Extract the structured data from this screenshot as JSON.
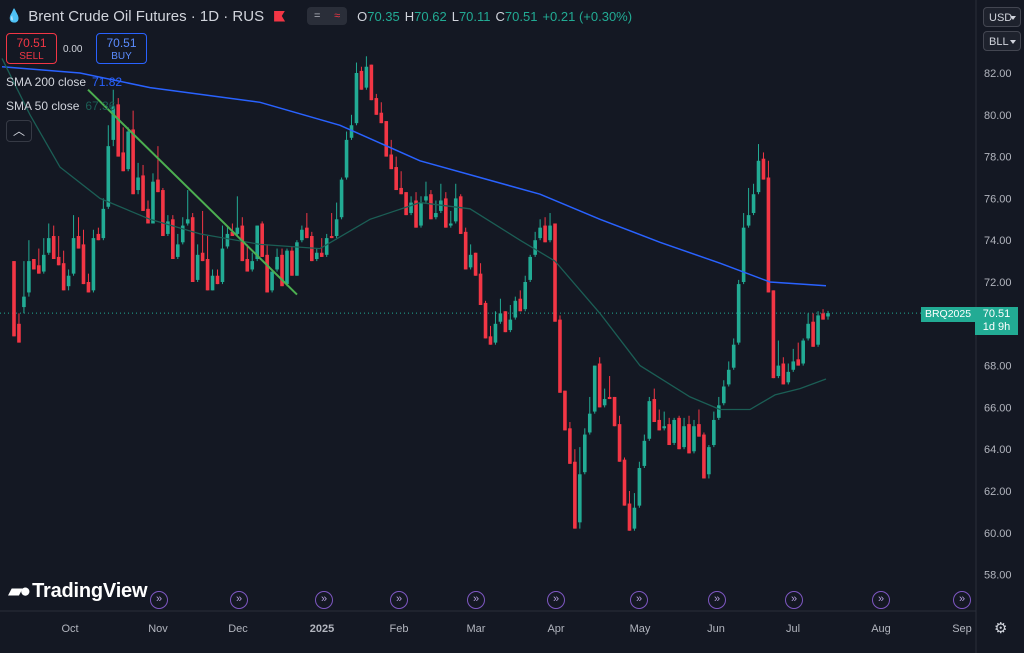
{
  "header": {
    "title": "Brent Crude Oil Futures · 1D · RUS",
    "pill_a": "=",
    "pill_b": "≈",
    "open_label": "O",
    "open": "70.35",
    "high_label": "H",
    "high": "70.62",
    "low_label": "L",
    "low": "70.11",
    "close_label": "C",
    "close": "70.51",
    "change": "+0.21 (+0.30%)"
  },
  "trade": {
    "sell_price": "70.51",
    "sell_label": "SELL",
    "spread": "0.00",
    "buy_price": "70.51",
    "buy_label": "BUY"
  },
  "indicators": [
    {
      "label": "SMA 200 close",
      "value": "71.82",
      "color": "#2962ff"
    },
    {
      "label": "SMA 50 close",
      "value": "67.36",
      "color": "#1b5e55"
    }
  ],
  "collapse_icon": "chevron-up-icon",
  "currency": "USD",
  "unit": "BLL",
  "brand": "TradingView",
  "price_badge": {
    "symbol": "BRQ2025",
    "price": "70.51",
    "countdown": "1d 9h"
  },
  "colors": {
    "up": "#22ab94",
    "down": "#f23645",
    "sma200": "#2962ff",
    "sma50": "#1b5e55",
    "trendline": "#4caf50",
    "background": "#141823",
    "event": "#7e57c2"
  },
  "chart_data": {
    "type": "candlestick",
    "title": "Brent Crude Oil Futures · 1D · RUS",
    "xlabel": "",
    "ylabel": "",
    "ylim": [
      57,
      84
    ],
    "y_ticks": [
      "82.00",
      "80.00",
      "78.00",
      "76.00",
      "74.00",
      "72.00",
      "70.00",
      "68.00",
      "66.00",
      "64.00",
      "62.00",
      "60.00",
      "58.00"
    ],
    "x_ticks": [
      "Oct",
      "Nov",
      "Dec",
      "2025",
      "Feb",
      "Mar",
      "Apr",
      "May",
      "Jun",
      "Jul",
      "Aug",
      "Sep"
    ],
    "grid": false,
    "last_price": 70.51,
    "candles": [
      [
        73,
        72.5,
        70.4,
        69.4
      ],
      [
        70,
        70,
        70.5,
        69.1
      ],
      [
        70.8,
        70.5,
        73.0,
        71.3
      ],
      [
        71.5,
        71.3,
        74.0,
        73.0
      ],
      [
        73.1,
        73.0,
        73.0,
        72.6
      ],
      [
        72.8,
        72.6,
        73.6,
        72.4
      ],
      [
        72.5,
        72.4,
        74.1,
        73.3
      ],
      [
        73.4,
        73.3,
        74.8,
        74.1
      ],
      [
        74.2,
        74.1,
        74.7,
        73.1
      ],
      [
        73.2,
        73.1,
        74.2,
        72.8
      ],
      [
        72.9,
        72.8,
        73.5,
        71.6
      ],
      [
        71.8,
        71.6,
        72.6,
        72.3
      ],
      [
        72.4,
        72.3,
        75.2,
        74.1
      ],
      [
        74.2,
        74.1,
        75.1,
        73.6
      ],
      [
        73.8,
        73.6,
        74.5,
        71.9
      ],
      [
        72.0,
        71.9,
        72.4,
        71.5
      ],
      [
        71.6,
        71.5,
        74.5,
        74.1
      ],
      [
        74.3,
        74.1,
        74.6,
        74.0
      ],
      [
        74.1,
        74.0,
        76.0,
        75.5
      ],
      [
        75.6,
        75.5,
        79.5,
        78.5
      ],
      [
        78.8,
        78.5,
        81.2,
        80.4
      ],
      [
        80.5,
        80.4,
        80.8,
        78.0
      ],
      [
        78.2,
        78.0,
        79.4,
        77.3
      ],
      [
        77.4,
        77.3,
        79.4,
        79.2
      ],
      [
        79.3,
        79.2,
        80.2,
        76.2
      ],
      [
        76.4,
        76.2,
        77.7,
        77.0
      ],
      [
        77.1,
        77.0,
        77.6,
        75.4
      ],
      [
        75.5,
        75.4,
        75.9,
        74.8
      ],
      [
        74.8,
        74.8,
        77.2,
        76.8
      ],
      [
        76.9,
        76.8,
        78.5,
        76.3
      ],
      [
        76.4,
        76.3,
        76.5,
        74.2
      ],
      [
        74.3,
        74.2,
        75.2,
        74.9
      ],
      [
        75.0,
        74.9,
        75.2,
        73.1
      ],
      [
        73.2,
        73.1,
        74.3,
        73.8
      ],
      [
        73.9,
        73.8,
        75.1,
        74.7
      ],
      [
        74.8,
        74.7,
        76.4,
        75.0
      ],
      [
        75.1,
        75.0,
        75.3,
        72.0
      ],
      [
        72.1,
        72.0,
        73.8,
        73.3
      ],
      [
        73.4,
        73.3,
        75.4,
        73.0
      ],
      [
        73.1,
        73.0,
        74.2,
        71.6
      ],
      [
        71.6,
        71.6,
        72.6,
        72.3
      ],
      [
        72.3,
        72.3,
        72.6,
        71.9
      ],
      [
        72.0,
        71.9,
        74.7,
        73.6
      ],
      [
        73.7,
        73.6,
        74.7,
        74.3
      ],
      [
        74.4,
        74.3,
        74.8,
        74.2
      ],
      [
        74.3,
        74.2,
        76.1,
        74.6
      ],
      [
        74.7,
        74.6,
        75.1,
        73.0
      ],
      [
        73.1,
        73.0,
        73.8,
        72.5
      ],
      [
        72.6,
        72.5,
        73.4,
        73.0
      ],
      [
        73.1,
        73.0,
        74.7,
        74.7
      ],
      [
        74.8,
        74.7,
        74.9,
        73.2
      ],
      [
        73.3,
        73.2,
        73.8,
        71.5
      ],
      [
        71.6,
        71.5,
        72.5,
        72.5
      ],
      [
        72.6,
        72.5,
        73.6,
        73.2
      ],
      [
        73.3,
        73.2,
        73.6,
        71.8
      ],
      [
        71.9,
        71.8,
        73.6,
        73.5
      ],
      [
        73.5,
        73.5,
        73.7,
        72.3
      ],
      [
        72.3,
        72.3,
        74.0,
        73.9
      ],
      [
        74.0,
        73.9,
        74.7,
        74.5
      ],
      [
        74.6,
        74.5,
        75.3,
        74.1
      ],
      [
        74.2,
        74.1,
        74.4,
        73.0
      ],
      [
        73.1,
        73.0,
        73.6,
        73.4
      ],
      [
        73.4,
        73.4,
        74.1,
        73.2
      ],
      [
        73.3,
        73.2,
        74.3,
        74.1
      ],
      [
        74.2,
        74.1,
        75.3,
        74.1
      ],
      [
        74.2,
        74.1,
        75.8,
        75.0
      ],
      [
        75.1,
        75.0,
        77.0,
        76.9
      ],
      [
        77.0,
        76.9,
        79.2,
        78.8
      ],
      [
        78.9,
        78.8,
        80.0,
        79.5
      ],
      [
        79.6,
        79.5,
        82.5,
        82.0
      ],
      [
        82.1,
        82.0,
        82.3,
        81.2
      ],
      [
        81.3,
        81.2,
        82.8,
        82.3
      ],
      [
        82.4,
        82.3,
        82.3,
        80.7
      ],
      [
        80.8,
        80.7,
        81.0,
        80.0
      ],
      [
        80.1,
        80.0,
        80.6,
        79.6
      ],
      [
        79.7,
        79.6,
        79.6,
        78.0
      ],
      [
        78.1,
        78.0,
        78.8,
        77.4
      ],
      [
        77.5,
        77.4,
        78.0,
        76.4
      ],
      [
        76.5,
        76.4,
        77.3,
        76.2
      ],
      [
        76.3,
        76.2,
        76.3,
        75.2
      ],
      [
        75.3,
        75.2,
        76.1,
        75.8
      ],
      [
        75.9,
        75.8,
        76.3,
        74.6
      ],
      [
        74.7,
        74.6,
        76.1,
        75.8
      ],
      [
        75.9,
        75.8,
        76.8,
        76.1
      ],
      [
        76.2,
        76.1,
        76.4,
        75.0
      ],
      [
        75.1,
        75.0,
        75.9,
        75.3
      ],
      [
        75.4,
        75.3,
        76.7,
        75.9
      ],
      [
        76.0,
        75.9,
        76.3,
        74.6
      ],
      [
        74.7,
        74.6,
        75.4,
        74.8
      ],
      [
        74.9,
        74.8,
        76.7,
        76.0
      ],
      [
        76.1,
        76.0,
        76.2,
        74.3
      ],
      [
        74.4,
        74.3,
        74.6,
        72.6
      ],
      [
        72.7,
        72.6,
        73.8,
        73.3
      ],
      [
        73.4,
        73.3,
        73.4,
        72.3
      ],
      [
        72.4,
        72.3,
        72.9,
        70.9
      ],
      [
        71.0,
        70.9,
        71.1,
        69.3
      ],
      [
        69.4,
        69.3,
        69.9,
        69.0
      ],
      [
        69.1,
        69.0,
        70.6,
        70.0
      ],
      [
        70.1,
        70.0,
        71.2,
        70.5
      ],
      [
        70.6,
        70.5,
        70.6,
        69.6
      ],
      [
        69.7,
        69.6,
        70.9,
        70.2
      ],
      [
        70.3,
        70.2,
        71.3,
        71.1
      ],
      [
        71.2,
        71.1,
        71.6,
        70.6
      ],
      [
        70.7,
        70.6,
        72.3,
        72.0
      ],
      [
        72.1,
        72.0,
        73.3,
        73.2
      ],
      [
        73.3,
        73.2,
        74.4,
        74.0
      ],
      [
        74.1,
        74.0,
        75.0,
        74.6
      ],
      [
        74.7,
        74.6,
        75.1,
        73.9
      ],
      [
        74.0,
        73.9,
        75.3,
        74.7
      ],
      [
        74.8,
        74.7,
        74.8,
        70.1
      ],
      [
        70.2,
        70.1,
        70.4,
        66.7
      ],
      [
        66.8,
        66.7,
        66.8,
        64.9
      ],
      [
        65.0,
        64.9,
        65.3,
        63.3
      ],
      [
        63.4,
        63.3,
        64.0,
        60.2
      ],
      [
        60.5,
        60.2,
        64.1,
        62.8
      ],
      [
        62.9,
        62.8,
        65.0,
        64.7
      ],
      [
        64.8,
        64.7,
        66.5,
        65.7
      ],
      [
        65.8,
        65.7,
        68.0,
        68.0
      ],
      [
        68.1,
        68.0,
        68.4,
        66.0
      ],
      [
        66.1,
        66.0,
        66.9,
        66.4
      ],
      [
        66.5,
        66.4,
        67.5,
        66.4
      ],
      [
        66.5,
        66.4,
        66.5,
        65.1
      ],
      [
        65.2,
        65.1,
        65.6,
        63.4
      ],
      [
        63.5,
        63.3,
        63.6,
        61.3
      ],
      [
        61.4,
        61.3,
        62.0,
        60.1
      ],
      [
        60.2,
        60.1,
        61.9,
        61.2
      ],
      [
        61.3,
        61.2,
        63.4,
        63.1
      ],
      [
        63.2,
        63.1,
        64.7,
        64.4
      ],
      [
        64.5,
        64.4,
        66.5,
        66.3
      ],
      [
        66.4,
        66.3,
        66.9,
        65.3
      ],
      [
        65.4,
        65.3,
        65.9,
        64.9
      ],
      [
        65.0,
        64.9,
        65.8,
        65.1
      ],
      [
        65.2,
        65.1,
        65.5,
        64.2
      ],
      [
        64.3,
        64.2,
        65.5,
        65.4
      ],
      [
        65.5,
        65.4,
        65.6,
        64.0
      ],
      [
        64.1,
        64.0,
        65.5,
        65.1
      ],
      [
        65.2,
        65.1,
        65.6,
        63.8
      ],
      [
        63.9,
        63.8,
        65.4,
        65.1
      ],
      [
        65.2,
        65.1,
        65.9,
        64.6
      ],
      [
        64.7,
        64.6,
        64.8,
        62.6
      ],
      [
        62.8,
        62.6,
        64.2,
        64.1
      ],
      [
        64.2,
        64.1,
        65.8,
        65.4
      ],
      [
        65.5,
        65.4,
        66.5,
        66.1
      ],
      [
        66.2,
        66.1,
        67.3,
        67.0
      ],
      [
        67.1,
        67.0,
        68.2,
        67.8
      ],
      [
        67.9,
        67.8,
        69.3,
        69.0
      ],
      [
        69.1,
        69.0,
        72.1,
        71.9
      ],
      [
        72.0,
        71.9,
        75.3,
        74.6
      ],
      [
        74.7,
        74.6,
        76.5,
        75.2
      ],
      [
        75.3,
        75.2,
        76.7,
        76.2
      ],
      [
        76.3,
        76.2,
        78.6,
        77.8
      ],
      [
        77.9,
        77.8,
        78.2,
        76.9
      ],
      [
        77.0,
        76.9,
        77.8,
        71.5
      ],
      [
        71.6,
        71.5,
        71.6,
        67.4
      ],
      [
        67.5,
        67.4,
        69.2,
        68.0
      ],
      [
        68.1,
        68.0,
        68.4,
        67.1
      ],
      [
        67.2,
        67.1,
        68.1,
        67.7
      ],
      [
        67.8,
        67.7,
        68.8,
        68.2
      ],
      [
        68.3,
        68.2,
        69.1,
        68.0
      ],
      [
        68.1,
        68.0,
        69.3,
        69.2
      ],
      [
        69.3,
        69.2,
        70.5,
        70.0
      ],
      [
        70.1,
        70.0,
        70.5,
        68.9
      ],
      [
        69.0,
        68.9,
        70.6,
        70.4
      ],
      [
        70.5,
        70.4,
        70.7,
        70.2
      ],
      [
        70.35,
        70.2,
        70.62,
        70.51
      ]
    ],
    "sma200": [
      [
        2,
        82.3
      ],
      [
        80,
        82.0
      ],
      [
        150,
        81.3
      ],
      [
        260,
        80.6
      ],
      [
        340,
        79.5
      ],
      [
        420,
        77.8
      ],
      [
        480,
        77.0
      ],
      [
        540,
        76.2
      ],
      [
        600,
        75.0
      ],
      [
        660,
        73.9
      ],
      [
        720,
        72.9
      ],
      [
        770,
        72.0
      ],
      [
        826,
        71.82
      ]
    ],
    "sma50": [
      [
        2,
        82.7
      ],
      [
        30,
        80.0
      ],
      [
        60,
        77.5
      ],
      [
        100,
        76.0
      ],
      [
        150,
        75.0
      ],
      [
        200,
        74.3
      ],
      [
        260,
        73.8
      ],
      [
        320,
        73.6
      ],
      [
        370,
        75.0
      ],
      [
        420,
        75.8
      ],
      [
        470,
        75.5
      ],
      [
        520,
        74.0
      ],
      [
        555,
        73.0
      ],
      [
        600,
        70.5
      ],
      [
        640,
        68.0
      ],
      [
        690,
        66.5
      ],
      [
        720,
        65.9
      ],
      [
        750,
        65.9
      ],
      [
        775,
        66.6
      ],
      [
        800,
        66.9
      ],
      [
        826,
        67.36
      ]
    ],
    "trendline": [
      [
        88,
        81.2
      ],
      [
        297,
        71.4
      ]
    ]
  }
}
